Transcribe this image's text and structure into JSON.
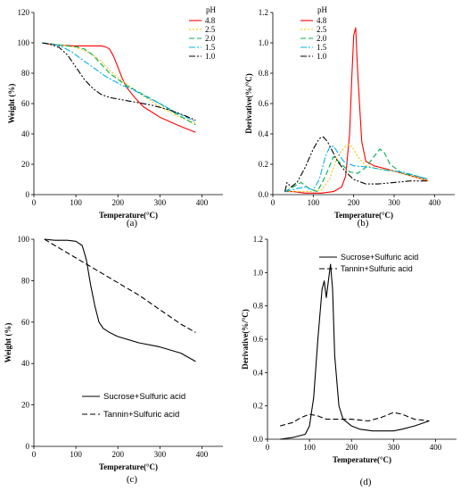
{
  "chart_data": [
    {
      "type": "line",
      "caption": "(a)",
      "xlabel": "Temperature(°C)",
      "ylabel": "Weight (%)",
      "xlim": [
        0,
        450
      ],
      "ylim": [
        0,
        120
      ],
      "xticks": [
        0,
        100,
        200,
        300,
        400
      ],
      "yticks": [
        0,
        20,
        40,
        60,
        80,
        100,
        120
      ],
      "legend_title": "pH",
      "legend_position": "top-right",
      "series": [
        {
          "name": "4.8",
          "color": "#ff0000",
          "dash": "solid",
          "x": [
            20,
            40,
            60,
            100,
            140,
            160,
            170,
            180,
            190,
            200,
            210,
            220,
            240,
            260,
            300,
            340,
            385
          ],
          "y": [
            100,
            99,
            98.5,
            98,
            98,
            98,
            97.5,
            96,
            91,
            84,
            77,
            71,
            64,
            58,
            51,
            46,
            41
          ]
        },
        {
          "name": "2.5",
          "color": "#ffc000",
          "dash": "dot",
          "x": [
            20,
            50,
            80,
            100,
            120,
            140,
            160,
            180,
            200,
            220,
            240,
            260,
            300,
            340,
            385
          ],
          "y": [
            100,
            99,
            98,
            97,
            95,
            92,
            88,
            82,
            77,
            73,
            69,
            65,
            58,
            52,
            47
          ]
        },
        {
          "name": "2.0",
          "color": "#00b050",
          "dash": "dash",
          "x": [
            20,
            50,
            80,
            100,
            120,
            140,
            160,
            180,
            200,
            220,
            240,
            260,
            300,
            340,
            385
          ],
          "y": [
            100,
            99,
            98,
            97.5,
            96,
            92,
            86,
            80,
            76,
            72,
            69,
            66,
            60,
            53,
            46
          ]
        },
        {
          "name": "1.5",
          "color": "#00b0f0",
          "dash": "dashdot",
          "x": [
            20,
            50,
            70,
            90,
            110,
            130,
            150,
            170,
            190,
            210,
            230,
            250,
            270,
            300,
            340,
            385
          ],
          "y": [
            100,
            99,
            97,
            94,
            90,
            86,
            82,
            78,
            75,
            72,
            70,
            67,
            64,
            60,
            54,
            48
          ]
        },
        {
          "name": "1.0",
          "color": "#000000",
          "dash": "dashdotdot",
          "x": [
            20,
            40,
            60,
            80,
            100,
            120,
            140,
            160,
            180,
            200,
            240,
            280,
            320,
            360,
            385
          ],
          "y": [
            100,
            99,
            97,
            92,
            84,
            76,
            70,
            66,
            64,
            63,
            61,
            59,
            56,
            52,
            49
          ]
        }
      ]
    },
    {
      "type": "line",
      "caption": "(b)",
      "xlabel": "Temperature(°C)",
      "ylabel": "Derivative(%/°C)",
      "xlim": [
        0,
        450
      ],
      "ylim": [
        0,
        1.2
      ],
      "xticks": [
        0,
        100,
        200,
        300,
        400
      ],
      "yticks": [
        0,
        0.2,
        0.4,
        0.6,
        0.8,
        1.0,
        1.2
      ],
      "legend_title": "pH",
      "legend_position": "top-right",
      "series": [
        {
          "name": "4.8",
          "color": "#ff0000",
          "dash": "solid",
          "x": [
            30,
            50,
            80,
            120,
            150,
            170,
            180,
            190,
            195,
            200,
            205,
            210,
            220,
            230,
            250,
            280,
            320,
            360,
            385
          ],
          "y": [
            0.02,
            0.02,
            0.01,
            0.01,
            0.02,
            0.05,
            0.12,
            0.4,
            0.75,
            1.05,
            1.1,
            0.8,
            0.35,
            0.22,
            0.19,
            0.17,
            0.14,
            0.11,
            0.09
          ]
        },
        {
          "name": "2.5",
          "color": "#ffc000",
          "dash": "dot",
          "x": [
            30,
            60,
            90,
            120,
            140,
            160,
            180,
            190,
            200,
            210,
            230,
            260,
            290,
            320,
            360,
            385
          ],
          "y": [
            0.02,
            0.02,
            0.02,
            0.03,
            0.1,
            0.25,
            0.32,
            0.33,
            0.3,
            0.25,
            0.19,
            0.17,
            0.16,
            0.14,
            0.11,
            0.09
          ]
        },
        {
          "name": "2.0",
          "color": "#00b050",
          "dash": "dash",
          "x": [
            30,
            50,
            70,
            90,
            110,
            130,
            150,
            170,
            190,
            210,
            230,
            250,
            265,
            275,
            290,
            320,
            360,
            385
          ],
          "y": [
            0.02,
            0.05,
            0.08,
            0.04,
            0.02,
            0.12,
            0.25,
            0.2,
            0.15,
            0.14,
            0.18,
            0.25,
            0.3,
            0.28,
            0.2,
            0.14,
            0.12,
            0.1
          ]
        },
        {
          "name": "1.5",
          "color": "#00b0f0",
          "dash": "dashdot",
          "x": [
            30,
            60,
            80,
            100,
            115,
            130,
            140,
            150,
            160,
            175,
            200,
            240,
            280,
            320,
            360,
            385
          ],
          "y": [
            0.02,
            0.04,
            0.05,
            0.03,
            0.1,
            0.25,
            0.31,
            0.32,
            0.28,
            0.22,
            0.19,
            0.18,
            0.16,
            0.15,
            0.12,
            0.1
          ]
        },
        {
          "name": "1.0",
          "color": "#000000",
          "dash": "dashdotdot",
          "x": [
            30,
            35,
            45,
            60,
            80,
            100,
            115,
            125,
            135,
            145,
            160,
            180,
            200,
            230,
            260,
            300,
            340,
            385
          ],
          "y": [
            0.02,
            0.08,
            0.05,
            0.08,
            0.18,
            0.3,
            0.37,
            0.38,
            0.35,
            0.3,
            0.22,
            0.15,
            0.1,
            0.07,
            0.07,
            0.08,
            0.09,
            0.09
          ]
        }
      ]
    },
    {
      "type": "line",
      "caption": "(c)",
      "xlabel": "Temperature(°C)",
      "ylabel": "Weight (%)",
      "xlim": [
        0,
        450
      ],
      "ylim": [
        0,
        100
      ],
      "xticks": [
        0,
        100,
        200,
        300,
        400
      ],
      "yticks": [
        0,
        20,
        40,
        60,
        80,
        100
      ],
      "legend_position": "bottom-center",
      "series": [
        {
          "name": "Sucrose+Sulfuric acid",
          "color": "#000000",
          "dash": "solid",
          "x": [
            25,
            50,
            80,
            100,
            115,
            125,
            135,
            145,
            155,
            165,
            180,
            200,
            250,
            300,
            350,
            385
          ],
          "y": [
            100,
            99.5,
            99.5,
            99,
            97,
            90,
            78,
            68,
            60,
            57,
            55,
            53,
            50,
            48,
            45,
            41
          ]
        },
        {
          "name": "Tannin+Sulfuric acid",
          "color": "#000000",
          "dash": "dash",
          "x": [
            25,
            50,
            100,
            150,
            200,
            250,
            300,
            350,
            385
          ],
          "y": [
            100,
            97,
            91,
            85,
            79,
            73,
            66,
            59,
            55
          ]
        }
      ]
    },
    {
      "type": "line",
      "caption": "(d)",
      "xlabel": "Temperature(°C)",
      "ylabel": "Derivative(%/°C)",
      "xlim": [
        0,
        450
      ],
      "ylim": [
        0,
        1.2
      ],
      "xticks": [
        0,
        100,
        200,
        300,
        400
      ],
      "yticks": [
        0,
        0.2,
        0.4,
        0.6,
        0.8,
        1.0,
        1.2
      ],
      "legend_position": "top-right",
      "series": [
        {
          "name": "Sucrose+Sulfuric acid",
          "color": "#000000",
          "dash": "solid",
          "x": [
            30,
            60,
            90,
            100,
            110,
            120,
            130,
            135,
            140,
            145,
            150,
            155,
            160,
            170,
            180,
            200,
            220,
            250,
            280,
            300,
            320,
            350,
            385
          ],
          "y": [
            0,
            0.01,
            0.03,
            0.08,
            0.25,
            0.6,
            0.9,
            0.95,
            0.85,
            0.95,
            1.05,
            0.9,
            0.5,
            0.2,
            0.12,
            0.08,
            0.06,
            0.05,
            0.05,
            0.05,
            0.06,
            0.08,
            0.11
          ]
        },
        {
          "name": "Tannin+Sulfuric acid",
          "color": "#000000",
          "dash": "dash",
          "x": [
            30,
            60,
            80,
            100,
            120,
            140,
            160,
            200,
            240,
            270,
            300,
            320,
            350,
            385
          ],
          "y": [
            0.08,
            0.1,
            0.13,
            0.15,
            0.14,
            0.12,
            0.12,
            0.12,
            0.11,
            0.13,
            0.16,
            0.15,
            0.12,
            0.11
          ]
        }
      ]
    }
  ],
  "panel_labels": {
    "a": "(a)",
    "b": "(b)",
    "c": "(c)",
    "d": "(d)"
  }
}
